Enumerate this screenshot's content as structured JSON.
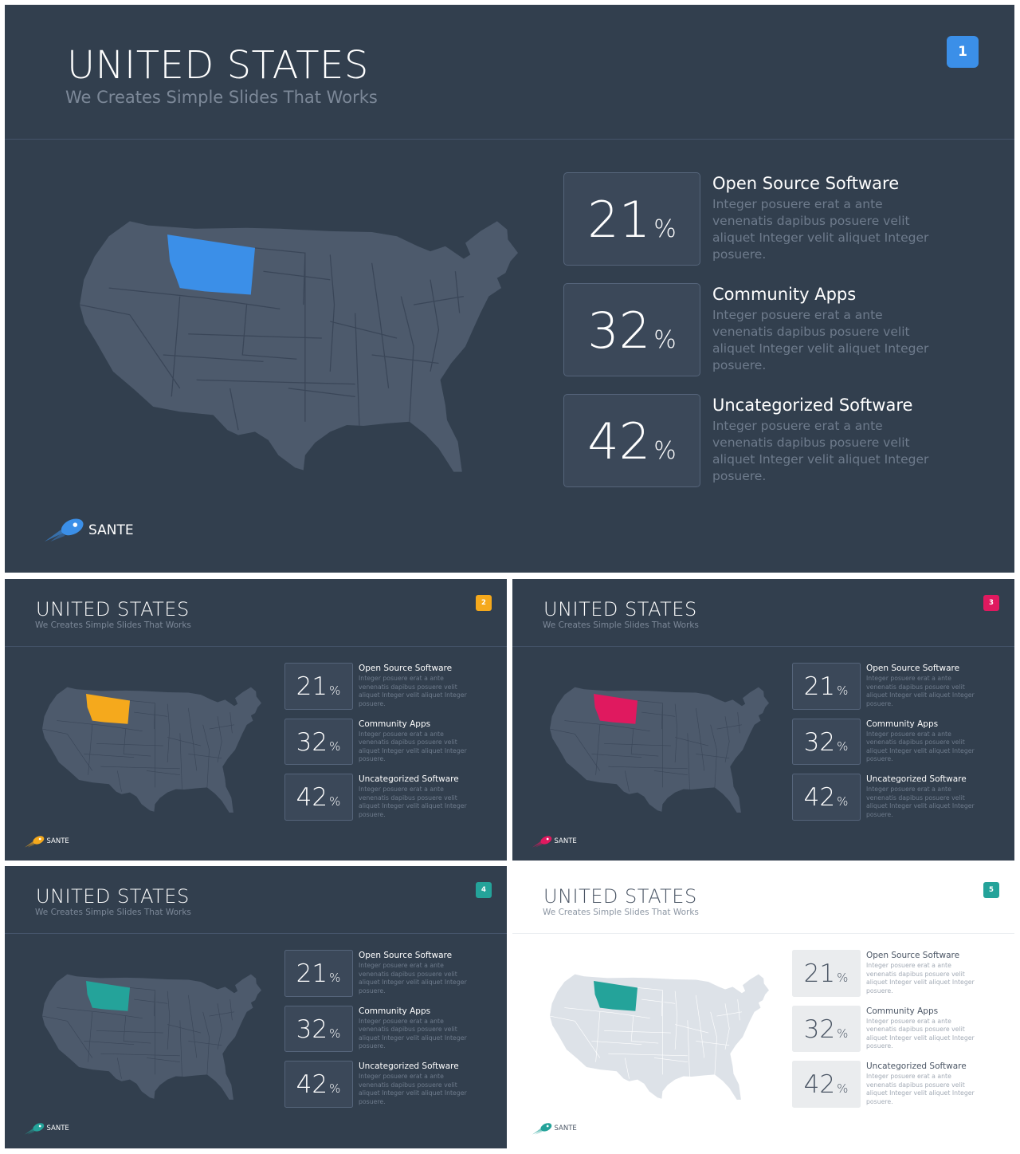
{
  "title": "UNITED STATES",
  "subtitle": "We Creates Simple Slides That Works",
  "brand": "SANTE",
  "highlighted_state_icon": "us-map-montana-highlight",
  "stats": [
    {
      "value": "21",
      "unit": "%",
      "title": "Open Source Software",
      "description": "Integer posuere erat a ante venenatis dapibus posuere velit aliquet Integer velit aliquet Integer posuere."
    },
    {
      "value": "32",
      "unit": "%",
      "title": "Community Apps",
      "description": "Integer posuere erat a ante venenatis dapibus posuere velit aliquet Integer velit aliquet Integer posuere."
    },
    {
      "value": "42",
      "unit": "%",
      "title": "Uncategorized Software",
      "description": "Integer posuere erat a ante venenatis dapibus posuere velit aliquet Integer velit aliquet Integer posuere."
    }
  ],
  "slides": [
    {
      "number": "1",
      "theme": "dark",
      "accent": "#3b8fe8"
    },
    {
      "number": "2",
      "theme": "dark",
      "accent": "#f5a91c"
    },
    {
      "number": "3",
      "theme": "dark",
      "accent": "#e0195f"
    },
    {
      "number": "4",
      "theme": "dark",
      "accent": "#24a39a"
    },
    {
      "number": "5",
      "theme": "light",
      "accent": "#24a39a"
    }
  ],
  "colors": {
    "dark_bg": "#323f4e",
    "map_dark": "#4d5a6c",
    "map_light": "#dde2e8"
  }
}
